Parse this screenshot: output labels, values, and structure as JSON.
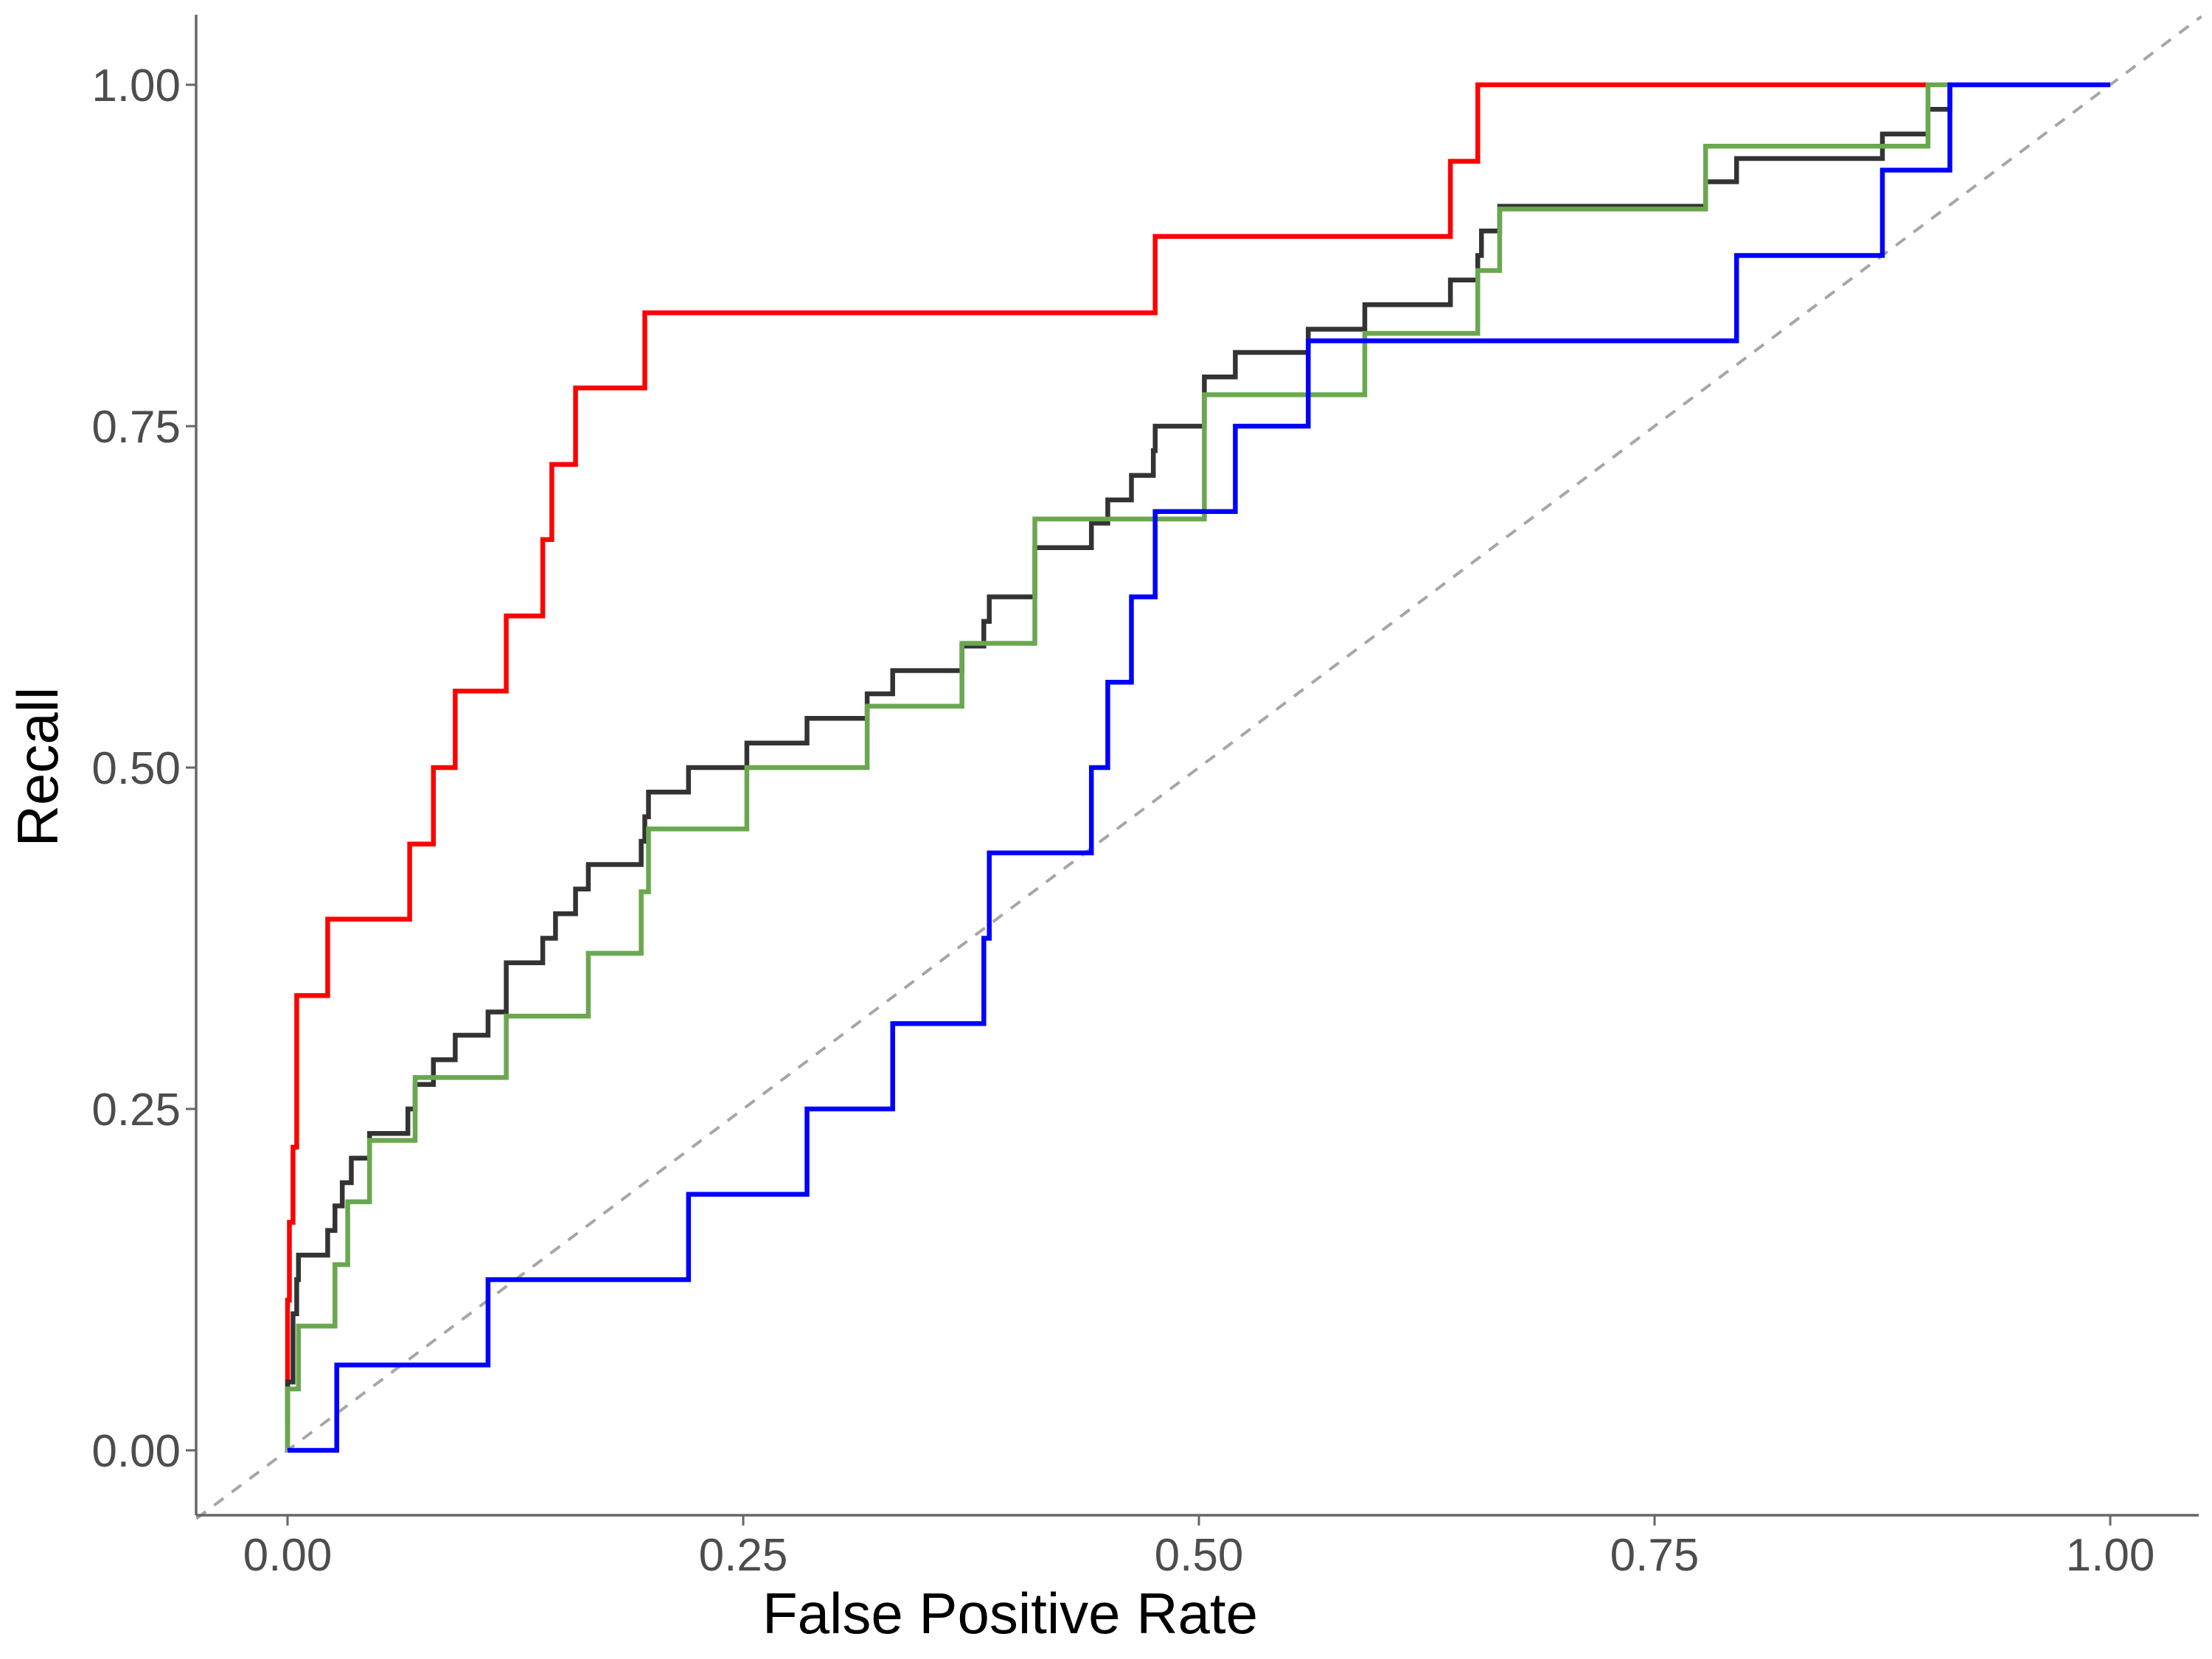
{
  "chart_data": {
    "type": "line",
    "title": "",
    "xlabel": "False Positive Rate",
    "ylabel": "Recall",
    "xlim": [
      -0.05,
      1.05
    ],
    "ylim": [
      -0.045,
      1.045
    ],
    "x_ticks": [
      0.0,
      0.25,
      0.5,
      0.75,
      1.0
    ],
    "x_tick_labels": [
      "0.00",
      "0.25",
      "0.50",
      "0.75",
      "1.00"
    ],
    "y_ticks": [
      0.0,
      0.25,
      0.5,
      0.75,
      1.0
    ],
    "y_tick_labels": [
      "0.00",
      "0.25",
      "0.50",
      "0.75",
      "1.00"
    ],
    "grid": false,
    "legend": "none",
    "reference_line": {
      "style": "dashed",
      "color": "#a6a6a6",
      "points": [
        [
          -0.05,
          -0.05
        ],
        [
          1.05,
          1.05
        ]
      ]
    },
    "series": [
      {
        "color": "#ff0000",
        "step": true,
        "points": [
          [
            0.0,
            0.0
          ],
          [
            0.0,
            0.06
          ],
          [
            0.0,
            0.11
          ],
          [
            0.001,
            0.11
          ],
          [
            0.001,
            0.167
          ],
          [
            0.003,
            0.167
          ],
          [
            0.003,
            0.222
          ],
          [
            0.005,
            0.222
          ],
          [
            0.005,
            0.278
          ],
          [
            0.005,
            0.333
          ],
          [
            0.022,
            0.333
          ],
          [
            0.022,
            0.389
          ],
          [
            0.067,
            0.389
          ],
          [
            0.067,
            0.444
          ],
          [
            0.08,
            0.444
          ],
          [
            0.08,
            0.5
          ],
          [
            0.092,
            0.5
          ],
          [
            0.092,
            0.556
          ],
          [
            0.12,
            0.556
          ],
          [
            0.12,
            0.611
          ],
          [
            0.14,
            0.611
          ],
          [
            0.14,
            0.667
          ],
          [
            0.145,
            0.667
          ],
          [
            0.145,
            0.722
          ],
          [
            0.158,
            0.722
          ],
          [
            0.158,
            0.778
          ],
          [
            0.196,
            0.778
          ],
          [
            0.196,
            0.833
          ],
          [
            0.476,
            0.833
          ],
          [
            0.476,
            0.889
          ],
          [
            0.638,
            0.889
          ],
          [
            0.638,
            0.944
          ],
          [
            0.653,
            0.944
          ],
          [
            0.653,
            1.0
          ],
          [
            0.9,
            1.0
          ]
        ]
      },
      {
        "color": "#333333",
        "step": true,
        "points": [
          [
            0.0,
            0.02
          ],
          [
            0.0,
            0.05
          ],
          [
            0.003,
            0.05
          ],
          [
            0.003,
            0.1
          ],
          [
            0.005,
            0.1
          ],
          [
            0.005,
            0.125
          ],
          [
            0.006,
            0.125
          ],
          [
            0.006,
            0.143
          ],
          [
            0.022,
            0.143
          ],
          [
            0.022,
            0.161
          ],
          [
            0.026,
            0.161
          ],
          [
            0.026,
            0.179
          ],
          [
            0.03,
            0.179
          ],
          [
            0.03,
            0.196
          ],
          [
            0.035,
            0.196
          ],
          [
            0.035,
            0.214
          ],
          [
            0.045,
            0.214
          ],
          [
            0.045,
            0.232
          ],
          [
            0.066,
            0.232
          ],
          [
            0.066,
            0.25
          ],
          [
            0.07,
            0.25
          ],
          [
            0.07,
            0.268
          ],
          [
            0.08,
            0.268
          ],
          [
            0.08,
            0.286
          ],
          [
            0.092,
            0.286
          ],
          [
            0.092,
            0.304
          ],
          [
            0.11,
            0.304
          ],
          [
            0.11,
            0.321
          ],
          [
            0.12,
            0.321
          ],
          [
            0.12,
            0.357
          ],
          [
            0.14,
            0.357
          ],
          [
            0.14,
            0.375
          ],
          [
            0.147,
            0.375
          ],
          [
            0.147,
            0.393
          ],
          [
            0.158,
            0.393
          ],
          [
            0.158,
            0.411
          ],
          [
            0.165,
            0.411
          ],
          [
            0.165,
            0.429
          ],
          [
            0.194,
            0.429
          ],
          [
            0.194,
            0.446
          ],
          [
            0.196,
            0.446
          ],
          [
            0.196,
            0.464
          ],
          [
            0.198,
            0.464
          ],
          [
            0.198,
            0.482
          ],
          [
            0.22,
            0.482
          ],
          [
            0.22,
            0.5
          ],
          [
            0.252,
            0.5
          ],
          [
            0.252,
            0.518
          ],
          [
            0.285,
            0.518
          ],
          [
            0.285,
            0.536
          ],
          [
            0.318,
            0.536
          ],
          [
            0.318,
            0.554
          ],
          [
            0.332,
            0.554
          ],
          [
            0.332,
            0.571
          ],
          [
            0.37,
            0.571
          ],
          [
            0.37,
            0.589
          ],
          [
            0.382,
            0.589
          ],
          [
            0.382,
            0.607
          ],
          [
            0.385,
            0.607
          ],
          [
            0.385,
            0.625
          ],
          [
            0.41,
            0.625
          ],
          [
            0.41,
            0.661
          ],
          [
            0.441,
            0.661
          ],
          [
            0.441,
            0.679
          ],
          [
            0.45,
            0.679
          ],
          [
            0.45,
            0.696
          ],
          [
            0.463,
            0.696
          ],
          [
            0.463,
            0.714
          ],
          [
            0.475,
            0.714
          ],
          [
            0.475,
            0.732
          ],
          [
            0.476,
            0.732
          ],
          [
            0.476,
            0.75
          ],
          [
            0.503,
            0.75
          ],
          [
            0.503,
            0.786
          ],
          [
            0.52,
            0.786
          ],
          [
            0.52,
            0.804
          ],
          [
            0.56,
            0.804
          ],
          [
            0.56,
            0.821
          ],
          [
            0.591,
            0.821
          ],
          [
            0.591,
            0.839
          ],
          [
            0.638,
            0.839
          ],
          [
            0.638,
            0.857
          ],
          [
            0.653,
            0.857
          ],
          [
            0.653,
            0.875
          ],
          [
            0.655,
            0.875
          ],
          [
            0.655,
            0.893
          ],
          [
            0.665,
            0.893
          ],
          [
            0.665,
            0.911
          ],
          [
            0.778,
            0.911
          ],
          [
            0.778,
            0.929
          ],
          [
            0.795,
            0.929
          ],
          [
            0.795,
            0.946
          ],
          [
            0.875,
            0.946
          ],
          [
            0.875,
            0.964
          ],
          [
            0.9,
            0.964
          ],
          [
            0.9,
            0.982
          ],
          [
            0.912,
            0.982
          ],
          [
            0.912,
            1.0
          ]
        ]
      },
      {
        "color": "#6aa84f",
        "step": true,
        "points": [
          [
            0.0,
            0.0
          ],
          [
            0.0,
            0.045
          ],
          [
            0.006,
            0.045
          ],
          [
            0.006,
            0.091
          ],
          [
            0.026,
            0.091
          ],
          [
            0.026,
            0.136
          ],
          [
            0.033,
            0.136
          ],
          [
            0.033,
            0.182
          ],
          [
            0.045,
            0.182
          ],
          [
            0.045,
            0.227
          ],
          [
            0.07,
            0.227
          ],
          [
            0.07,
            0.273
          ],
          [
            0.12,
            0.273
          ],
          [
            0.12,
            0.318
          ],
          [
            0.165,
            0.318
          ],
          [
            0.165,
            0.364
          ],
          [
            0.194,
            0.364
          ],
          [
            0.194,
            0.409
          ],
          [
            0.198,
            0.409
          ],
          [
            0.198,
            0.455
          ],
          [
            0.252,
            0.455
          ],
          [
            0.252,
            0.5
          ],
          [
            0.318,
            0.5
          ],
          [
            0.318,
            0.545
          ],
          [
            0.37,
            0.545
          ],
          [
            0.37,
            0.591
          ],
          [
            0.41,
            0.591
          ],
          [
            0.41,
            0.636
          ],
          [
            0.41,
            0.682
          ],
          [
            0.503,
            0.682
          ],
          [
            0.503,
            0.727
          ],
          [
            0.503,
            0.773
          ],
          [
            0.591,
            0.773
          ],
          [
            0.591,
            0.818
          ],
          [
            0.653,
            0.818
          ],
          [
            0.653,
            0.864
          ],
          [
            0.665,
            0.864
          ],
          [
            0.665,
            0.909
          ],
          [
            0.778,
            0.909
          ],
          [
            0.778,
            0.955
          ],
          [
            0.9,
            0.955
          ],
          [
            0.9,
            1.0
          ],
          [
            0.912,
            1.0
          ]
        ]
      },
      {
        "color": "#0000ff",
        "step": true,
        "points": [
          [
            0.0,
            0.0
          ],
          [
            0.027,
            0.0
          ],
          [
            0.027,
            0.0625
          ],
          [
            0.11,
            0.0625
          ],
          [
            0.11,
            0.125
          ],
          [
            0.22,
            0.125
          ],
          [
            0.22,
            0.1875
          ],
          [
            0.285,
            0.1875
          ],
          [
            0.285,
            0.25
          ],
          [
            0.332,
            0.25
          ],
          [
            0.332,
            0.3125
          ],
          [
            0.382,
            0.3125
          ],
          [
            0.382,
            0.375
          ],
          [
            0.385,
            0.375
          ],
          [
            0.385,
            0.4375
          ],
          [
            0.441,
            0.4375
          ],
          [
            0.441,
            0.5
          ],
          [
            0.45,
            0.5
          ],
          [
            0.45,
            0.5625
          ],
          [
            0.463,
            0.5625
          ],
          [
            0.463,
            0.625
          ],
          [
            0.476,
            0.625
          ],
          [
            0.476,
            0.6875
          ],
          [
            0.52,
            0.6875
          ],
          [
            0.52,
            0.75
          ],
          [
            0.56,
            0.75
          ],
          [
            0.56,
            0.8125
          ],
          [
            0.795,
            0.8125
          ],
          [
            0.795,
            0.875
          ],
          [
            0.875,
            0.875
          ],
          [
            0.875,
            0.9375
          ],
          [
            0.912,
            0.9375
          ],
          [
            0.912,
            1.0
          ],
          [
            1.0,
            1.0
          ]
        ]
      }
    ]
  }
}
